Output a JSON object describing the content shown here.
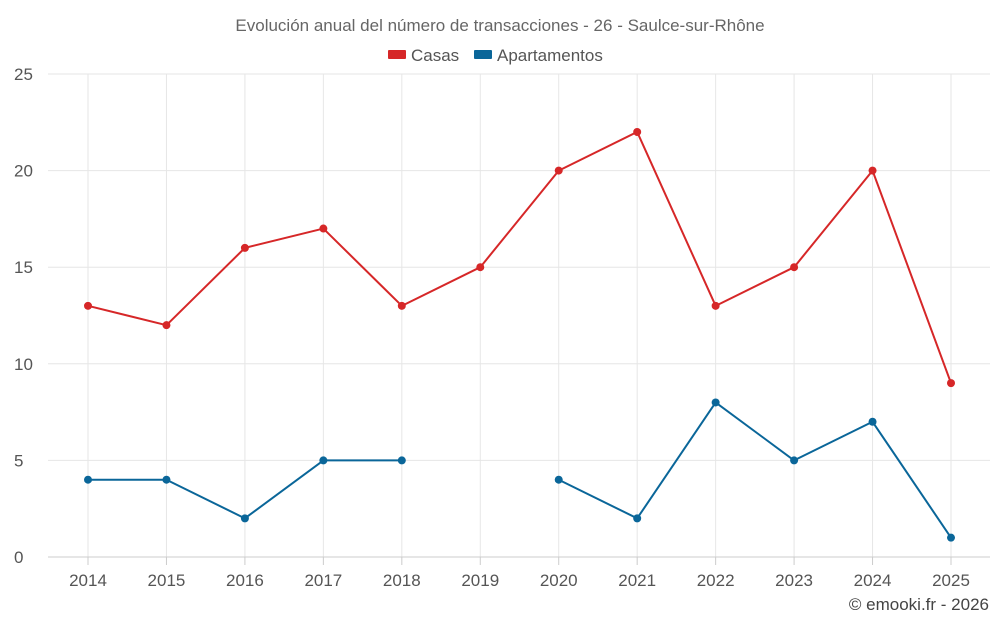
{
  "chart_data": {
    "type": "line",
    "title": "Evolución anual del número de transacciones - 26 - Saulce-sur-Rhône",
    "categories": [
      "2014",
      "2015",
      "2016",
      "2017",
      "2018",
      "2019",
      "2020",
      "2021",
      "2022",
      "2023",
      "2024",
      "2025"
    ],
    "series": [
      {
        "name": "Casas",
        "color": "#d62728",
        "values": [
          13,
          12,
          16,
          17,
          13,
          15,
          20,
          22,
          13,
          15,
          20,
          9
        ]
      },
      {
        "name": "Apartamentos",
        "color": "#0a6699",
        "values": [
          4,
          4,
          2,
          5,
          5,
          null,
          4,
          2,
          8,
          5,
          7,
          1
        ]
      }
    ],
    "ylim": [
      0,
      25
    ],
    "yticks": [
      0,
      5,
      10,
      15,
      20,
      25
    ],
    "grid": true,
    "legend_position": "top-center",
    "xlabel": "",
    "ylabel": ""
  },
  "credit": "© emooki.fr - 2026"
}
